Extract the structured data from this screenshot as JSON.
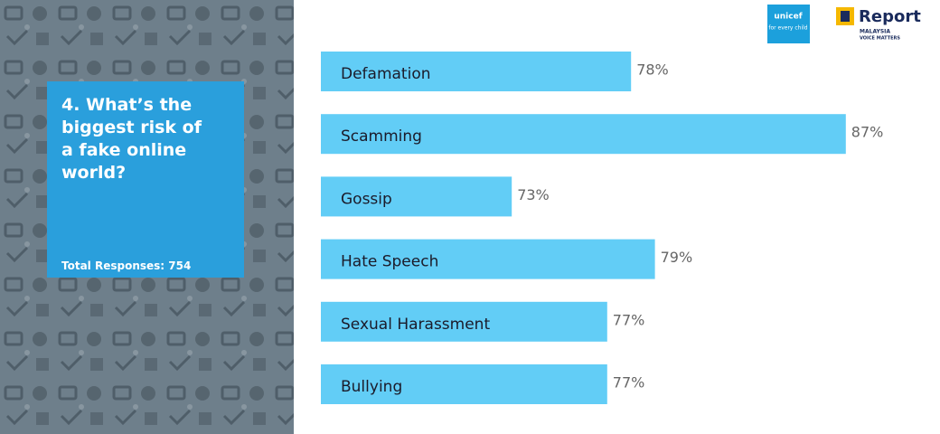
{
  "chart_data": {
    "type": "bar",
    "orientation": "horizontal",
    "title": "4. What’s the biggest risk of a fake online world?",
    "subtitle": "Total Responses: 754",
    "categories": [
      "Defamation",
      "Scamming",
      "Gossip",
      "Hate Speech",
      "Sexual Harassment",
      "Bullying"
    ],
    "values": [
      78,
      87,
      73,
      79,
      77,
      77
    ],
    "value_labels": [
      "78%",
      "87%",
      "73%",
      "79%",
      "77%",
      "77%"
    ],
    "color": "#62cdf6",
    "xlim": [
      65,
      90
    ]
  },
  "logos": {
    "unicef": "unicef",
    "unicef_tagline": "for every child",
    "report": "Report",
    "report_country": "MALAYSIA",
    "report_tagline": "VOICE MATTERS"
  }
}
